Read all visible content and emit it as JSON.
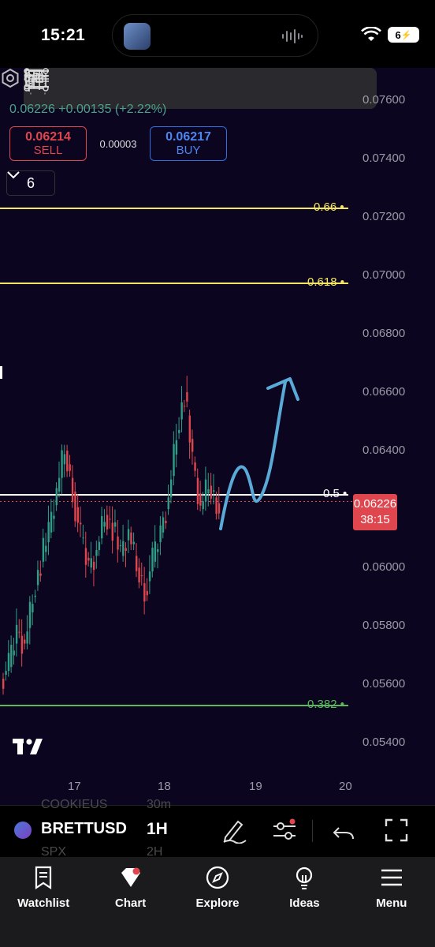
{
  "status_bar": {
    "time": "15:21",
    "battery": "6"
  },
  "toolbar": {
    "tools": [
      "grip-icon",
      "trend-line-icon",
      "horizontal-ray-icon",
      "fib-retracement-icon",
      "rectangle-icon",
      "parallel-channel-icon",
      "pitchfork-icon",
      "long-position-icon",
      "text-tool-icon"
    ]
  },
  "ticker": {
    "change_line": "0.06226 +0.00135 (+2.22%)",
    "sell_price": "0.06214",
    "sell_label": "SELL",
    "spread": "0.00003",
    "buy_price": "0.06217",
    "buy_label": "BUY",
    "indicators_count": "6"
  },
  "axis": {
    "price_ticks": [
      "0.07600",
      "0.07400",
      "0.07200",
      "0.07000",
      "0.06800",
      "0.06600",
      "0.06400",
      "0.06200",
      "0.06000",
      "0.05800",
      "0.05600",
      "0.05400"
    ],
    "date_ticks": [
      "17",
      "18",
      "19",
      "20"
    ]
  },
  "fib_levels": [
    {
      "label": "0.66",
      "color": "#f5e663"
    },
    {
      "label": "0.618",
      "color": "#f5e663"
    },
    {
      "label": "0.5",
      "color": "#ffffff"
    },
    {
      "label": "0.382",
      "color": "#5cb85c"
    }
  ],
  "current_price": {
    "price": "0.06226",
    "countdown": "38:15",
    "color": "#e0464e"
  },
  "chart_data": {
    "type": "candlestick",
    "ylim": [
      0.0535,
      0.0765
    ],
    "up_color": "#2e9e86",
    "down_color": "#e0464e",
    "x_ticks": [
      "17",
      "18",
      "19",
      "20"
    ],
    "ohlc_approx": [
      [
        0.0562,
        0.0568,
        0.0559,
        0.0566
      ],
      [
        0.0566,
        0.058,
        0.0565,
        0.0578
      ],
      [
        0.0578,
        0.0582,
        0.057,
        0.0574
      ],
      [
        0.0574,
        0.0592,
        0.0573,
        0.059
      ],
      [
        0.059,
        0.0605,
        0.0586,
        0.0602
      ],
      [
        0.0602,
        0.0615,
        0.0598,
        0.0612
      ],
      [
        0.0612,
        0.063,
        0.0608,
        0.0626
      ],
      [
        0.0626,
        0.0646,
        0.062,
        0.064
      ],
      [
        0.064,
        0.0647,
        0.0622,
        0.0626
      ],
      [
        0.0626,
        0.0632,
        0.0604,
        0.061
      ],
      [
        0.061,
        0.0622,
        0.0596,
        0.06
      ],
      [
        0.06,
        0.0612,
        0.0588,
        0.0606
      ],
      [
        0.0606,
        0.0622,
        0.06,
        0.0618
      ],
      [
        0.0618,
        0.0628,
        0.061,
        0.0614
      ],
      [
        0.0614,
        0.0624,
        0.06,
        0.0604
      ],
      [
        0.0604,
        0.0618,
        0.059,
        0.0612
      ],
      [
        0.0612,
        0.0624,
        0.0596,
        0.06
      ],
      [
        0.06,
        0.0612,
        0.058,
        0.0592
      ],
      [
        0.0592,
        0.0606,
        0.0584,
        0.0602
      ],
      [
        0.0602,
        0.0616,
        0.0598,
        0.0612
      ],
      [
        0.0612,
        0.0628,
        0.0606,
        0.0624
      ],
      [
        0.0624,
        0.0652,
        0.062,
        0.0646
      ],
      [
        0.0646,
        0.0665,
        0.064,
        0.066
      ],
      [
        0.066,
        0.0662,
        0.063,
        0.0636
      ],
      [
        0.0636,
        0.064,
        0.0612,
        0.062
      ],
      [
        0.062,
        0.0632,
        0.0612,
        0.0628
      ],
      [
        0.0628,
        0.0632,
        0.0614,
        0.0622
      ],
      [
        0.0622,
        0.0632,
        0.0616,
        0.0626
      ]
    ],
    "projection": "hand-drawn arrow from 0.0614 up to ~0.0660 near date 19"
  },
  "symbol_bar": {
    "symbol": "BRETTUSD",
    "timeframe": "1H",
    "ghost_symbol_1": "COOKIEUS",
    "ghost_tf_1": "30m",
    "ghost_symbol_2": "SPX",
    "ghost_tf_2": "2H"
  },
  "nav": [
    {
      "label": "Watchlist",
      "icon": "watchlist-icon"
    },
    {
      "label": "Chart",
      "icon": "chart-icon"
    },
    {
      "label": "Explore",
      "icon": "compass-icon"
    },
    {
      "label": "Ideas",
      "icon": "lightbulb-icon"
    },
    {
      "label": "Menu",
      "icon": "menu-icon"
    }
  ]
}
